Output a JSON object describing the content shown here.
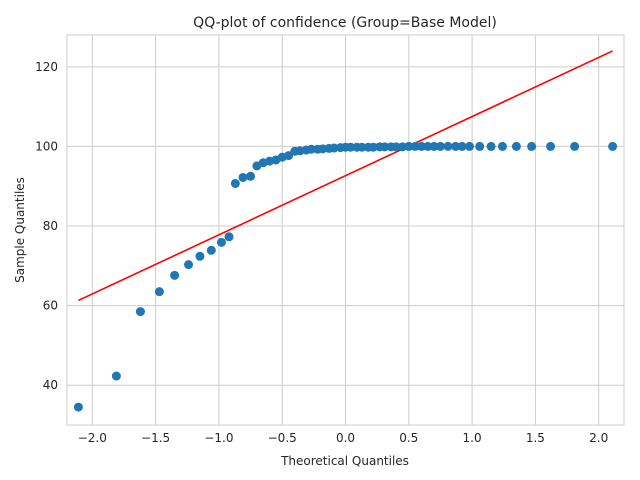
{
  "chart_data": {
    "type": "scatter",
    "title": "QQ-plot of confidence (Group=Base Model)",
    "xlabel": "Theoretical Quantiles",
    "ylabel": "Sample Quantiles",
    "xlim": [
      -2.2,
      2.2
    ],
    "ylim": [
      30,
      128
    ],
    "xticks": [
      -2.0,
      -1.5,
      -1.0,
      -0.5,
      0.0,
      0.5,
      1.0,
      1.5,
      2.0
    ],
    "xtick_labels": [
      "−2.0",
      "−1.5",
      "−1.0",
      "−0.5",
      "0.0",
      "0.5",
      "1.0",
      "1.5",
      "2.0"
    ],
    "yticks": [
      40,
      60,
      80,
      100,
      120
    ],
    "ytick_labels": [
      "40",
      "60",
      "80",
      "100",
      "120"
    ],
    "grid": true,
    "point_color": "#1f77b4",
    "line_color": "#ff0000",
    "points": {
      "x": [
        -2.11,
        -1.81,
        -1.62,
        -1.47,
        -1.35,
        -1.24,
        -1.15,
        -1.06,
        -0.98,
        -0.92,
        -0.87,
        -0.81,
        -0.75,
        -0.7,
        -0.65,
        -0.6,
        -0.55,
        -0.5,
        -0.45,
        -0.4,
        -0.36,
        -0.31,
        -0.27,
        -0.22,
        -0.18,
        -0.13,
        -0.09,
        -0.04,
        0.0,
        0.04,
        0.09,
        0.13,
        0.18,
        0.22,
        0.27,
        0.31,
        0.36,
        0.4,
        0.45,
        0.5,
        0.55,
        0.6,
        0.65,
        0.7,
        0.75,
        0.81,
        0.87,
        0.92,
        0.98,
        1.06,
        1.15,
        1.24,
        1.35,
        1.47,
        1.62,
        1.81,
        2.11
      ],
      "y": [
        34.5,
        42.3,
        58.5,
        63.5,
        67.6,
        70.3,
        72.4,
        73.9,
        75.9,
        77.3,
        90.7,
        92.2,
        92.5,
        95.1,
        95.9,
        96.3,
        96.6,
        97.3,
        97.7,
        98.8,
        98.9,
        99.1,
        99.3,
        99.3,
        99.4,
        99.5,
        99.6,
        99.7,
        99.8,
        99.8,
        99.8,
        99.8,
        99.8,
        99.8,
        99.9,
        99.9,
        99.9,
        99.9,
        99.9,
        100.0,
        100.0,
        100.0,
        100.0,
        100.0,
        100.0,
        100.0,
        100.0,
        100.0,
        100.0,
        100.0,
        100.0,
        100.0,
        100.0,
        100.0,
        100.0,
        100.0,
        100.0
      ]
    },
    "reference_line": {
      "x": [
        -2.11,
        2.11
      ],
      "y": [
        61.3,
        124.0
      ]
    }
  }
}
